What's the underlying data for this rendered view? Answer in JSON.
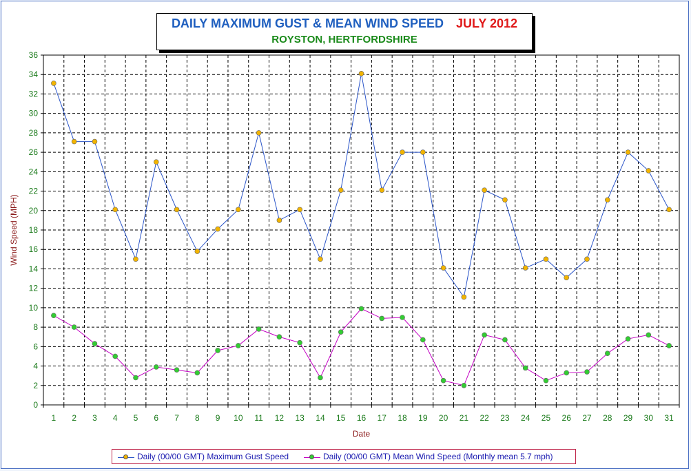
{
  "title": {
    "main": "DAILY MAXIMUM GUST & MEAN WIND SPEED",
    "month": "JULY 2012",
    "subtitle": "ROYSTON, HERTFORDSHIRE"
  },
  "colors": {
    "gust_line": "#2b55c8",
    "mean_line": "#c400c4",
    "gust_marker": "#f2b400",
    "mean_marker": "#33cc33",
    "tick_text": "#1a7a1a",
    "axis_title": "#8b1a1a"
  },
  "chart_data": {
    "type": "line",
    "xlabel": "Date",
    "ylabel": "Wind Speed (MPH)",
    "ylim": [
      0,
      36
    ],
    "y_ticks": [
      0,
      2,
      4,
      6,
      8,
      10,
      12,
      14,
      16,
      18,
      20,
      22,
      24,
      26,
      28,
      30,
      32,
      34,
      36
    ],
    "grid": true,
    "legend_position": "bottom",
    "categories": [
      "1",
      "2",
      "3",
      "4",
      "5",
      "6",
      "7",
      "8",
      "9",
      "10",
      "11",
      "12",
      "13",
      "14",
      "15",
      "16",
      "17",
      "18",
      "19",
      "20",
      "21",
      "22",
      "23",
      "24",
      "25",
      "26",
      "27",
      "28",
      "29",
      "30",
      "31"
    ],
    "series": [
      {
        "name": "Daily (00/00 GMT) Maximum Gust Speed",
        "values": [
          33.1,
          27.1,
          27.1,
          20.1,
          15.0,
          25.0,
          20.1,
          15.8,
          18.1,
          20.1,
          28.0,
          19.0,
          20.1,
          15.0,
          22.1,
          34.1,
          22.1,
          26.0,
          26.0,
          14.1,
          11.1,
          22.1,
          21.1,
          14.1,
          15.0,
          13.1,
          15.0,
          21.1,
          26.0,
          24.1,
          20.1
        ]
      },
      {
        "name": "Daily (00/00 GMT) Mean Wind Speed (Monthly mean 5.7 mph)",
        "values": [
          9.2,
          8.0,
          6.3,
          5.0,
          2.8,
          3.9,
          3.6,
          3.3,
          5.6,
          6.1,
          7.8,
          7.0,
          6.4,
          2.8,
          7.5,
          9.9,
          8.9,
          9.0,
          6.7,
          2.5,
          2.0,
          7.2,
          6.7,
          3.8,
          2.5,
          3.3,
          3.4,
          5.3,
          6.8,
          7.2,
          6.1
        ]
      }
    ]
  }
}
